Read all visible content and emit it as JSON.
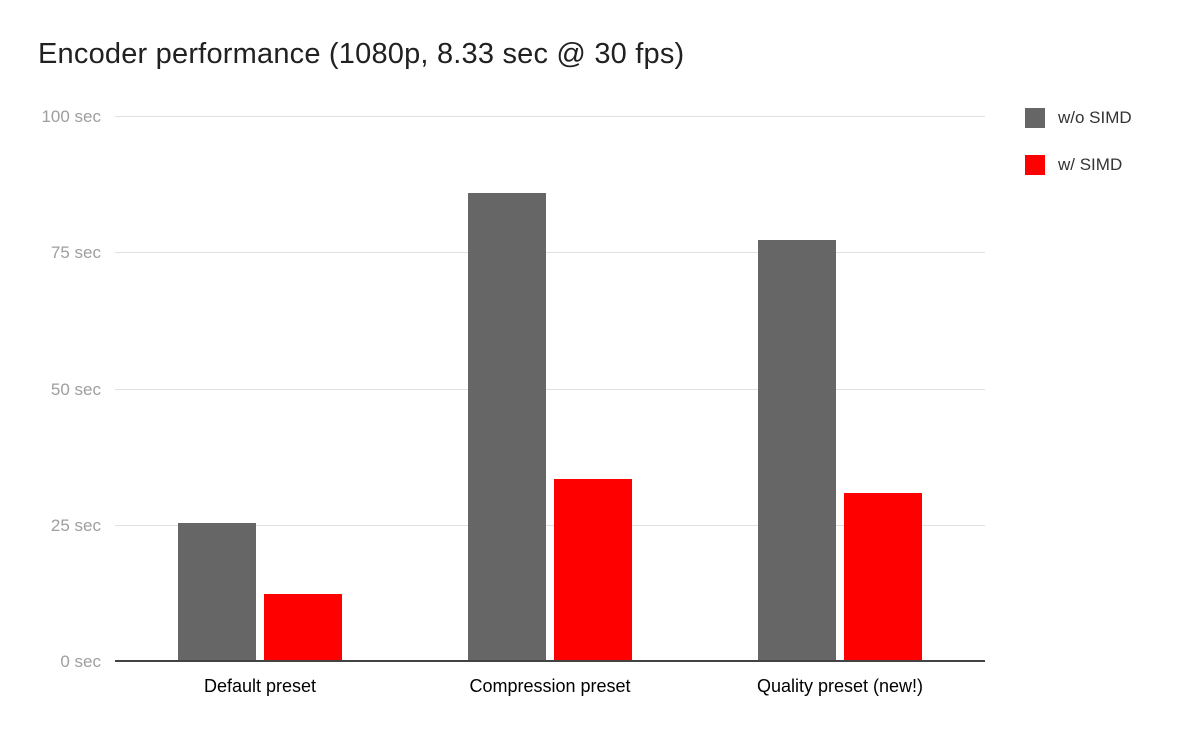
{
  "chart_data": {
    "type": "bar",
    "title": "Encoder performance (1080p, 8.33 sec @ 30 fps)",
    "categories": [
      "Default preset",
      "Compression preset",
      "Quality preset (new!)"
    ],
    "series": [
      {
        "name": "w/o SIMD",
        "color": "#666666",
        "values": [
          25.5,
          86,
          77.5
        ]
      },
      {
        "name": "w/ SIMD",
        "color": "#ff0000",
        "values": [
          12.5,
          33.5,
          31
        ]
      }
    ],
    "xlabel": "",
    "ylabel": "",
    "ylim": [
      0,
      100
    ],
    "yticks": [
      {
        "value": 0,
        "label": "0 sec"
      },
      {
        "value": 25,
        "label": "25 sec"
      },
      {
        "value": 50,
        "label": "50 sec"
      },
      {
        "value": 75,
        "label": "75 sec"
      },
      {
        "value": 100,
        "label": "100 sec"
      }
    ],
    "grid": true,
    "legend_position": "right"
  },
  "colors": {
    "background": "#ffffff",
    "gridline": "#e0e0e0",
    "baseline": "#424242",
    "title_text": "#212121",
    "ytick_text": "#9e9e9e",
    "xlabel_text": "#000000",
    "series_gray": "#666666",
    "series_red": "#ff0000"
  }
}
